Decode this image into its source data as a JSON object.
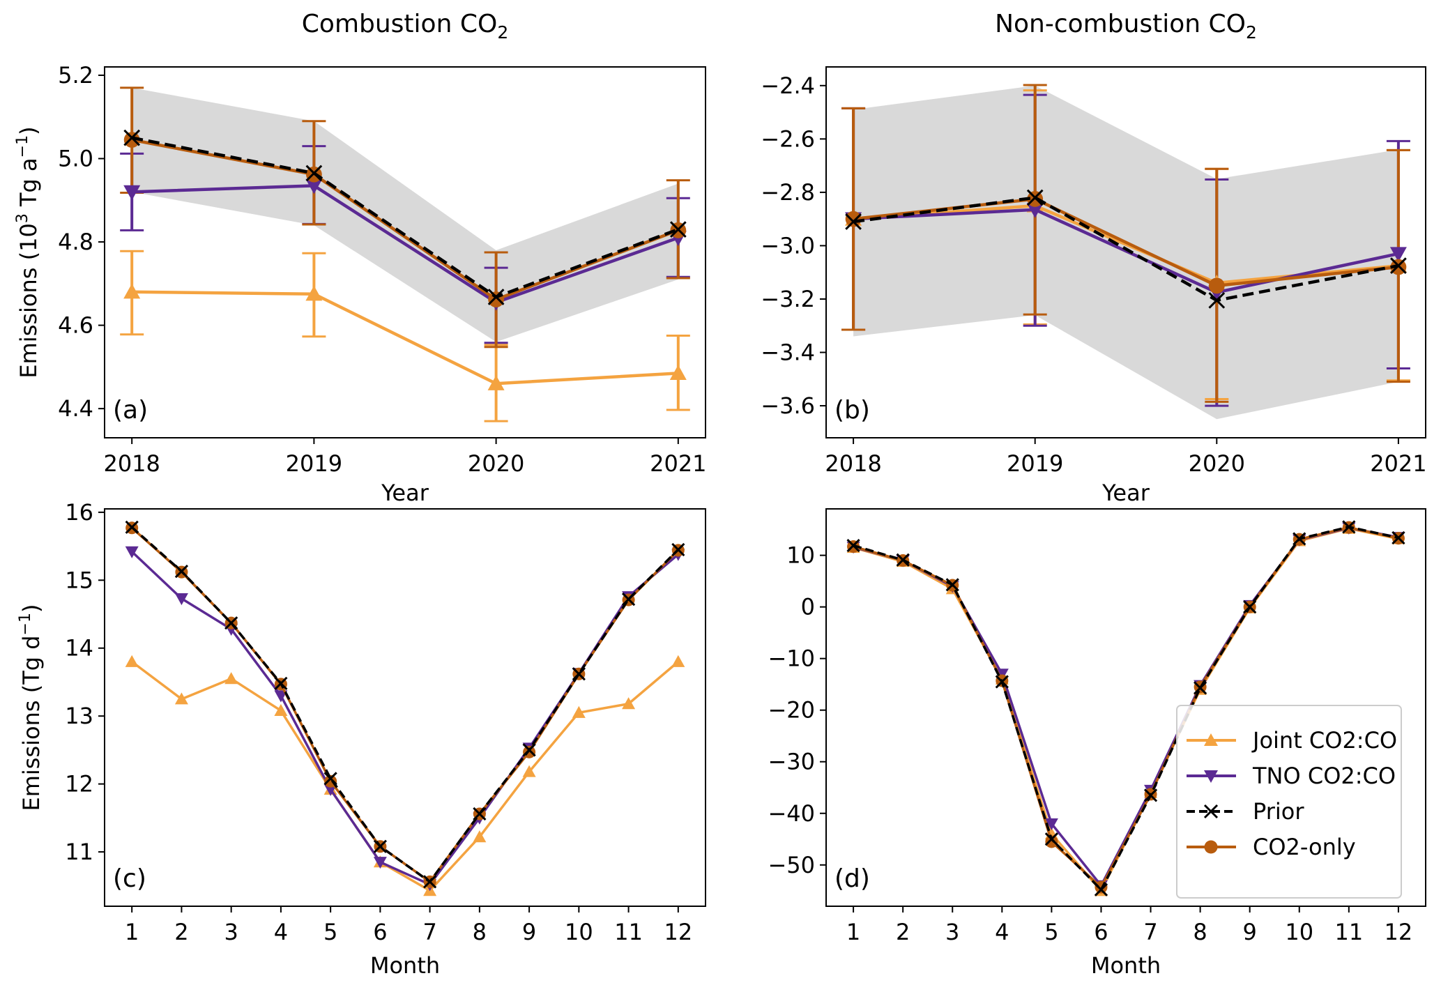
{
  "colors": {
    "joint": "#f4a340",
    "tno": "#5b2a93",
    "prior": "#000000",
    "co2only": "#b85c0e",
    "band": "#d9d9d9"
  },
  "legend": {
    "placement": "lower-right of panel (d)",
    "entries": [
      {
        "key": "joint",
        "label": "Joint CO2:CO",
        "marker": "triangle-up",
        "line": "solid"
      },
      {
        "key": "tno",
        "label": "TNO CO2:CO",
        "marker": "triangle-down",
        "line": "solid"
      },
      {
        "key": "prior",
        "label": "Prior",
        "marker": "x",
        "line": "dashed"
      },
      {
        "key": "co2only",
        "label": "CO2-only",
        "marker": "circle",
        "line": "solid"
      }
    ]
  },
  "chart_data": [
    {
      "id": "a",
      "panel_label": "(a)",
      "type": "line",
      "title": "Combustion CO",
      "title_subscript": "2",
      "xlabel": "Year",
      "ylabel_main": "Emissions (10",
      "ylabel_sup1": "3",
      "ylabel_mid": " Tg a",
      "ylabel_sup2": "−1",
      "ylabel_end": ")",
      "x": [
        2018,
        2019,
        2020,
        2021
      ],
      "xticks": [
        "2018",
        "2019",
        "2020",
        "2021"
      ],
      "xlim": [
        2017.85,
        2021.15
      ],
      "ylim": [
        4.33,
        5.22
      ],
      "yticks": [
        4.4,
        4.6,
        4.8,
        5.0,
        5.2
      ],
      "ytick_labels": [
        "4.4",
        "4.6",
        "4.8",
        "5.0",
        "5.2"
      ],
      "band": {
        "lower": [
          4.92,
          4.84,
          4.56,
          4.71
        ],
        "upper": [
          5.17,
          5.09,
          4.78,
          4.94
        ]
      },
      "series": [
        {
          "key": "joint",
          "name": "Joint CO2:CO",
          "values": [
            4.68,
            4.675,
            4.46,
            4.485
          ],
          "err_low": [
            4.578,
            4.573,
            4.37,
            4.397
          ],
          "err_high": [
            4.778,
            4.773,
            4.553,
            4.575
          ]
        },
        {
          "key": "tno",
          "name": "TNO CO2:CO",
          "values": [
            4.92,
            4.935,
            4.655,
            4.81
          ],
          "err_low": [
            4.828,
            4.843,
            4.558,
            4.716
          ],
          "err_high": [
            5.012,
            5.03,
            4.738,
            4.905
          ]
        },
        {
          "key": "prior",
          "name": "Prior",
          "values": [
            5.05,
            4.965,
            4.668,
            4.83
          ]
        },
        {
          "key": "co2only",
          "name": "CO2-only",
          "values": [
            5.045,
            4.962,
            4.662,
            4.828
          ],
          "err_low": [
            4.918,
            4.842,
            4.548,
            4.713
          ],
          "err_high": [
            5.17,
            5.09,
            4.775,
            4.948
          ]
        }
      ],
      "grid": false
    },
    {
      "id": "b",
      "panel_label": "(b)",
      "type": "line",
      "title": "Non-combustion CO",
      "title_subscript": "2",
      "xlabel": "Year",
      "x": [
        2018,
        2019,
        2020,
        2021
      ],
      "xticks": [
        "2018",
        "2019",
        "2020",
        "2021"
      ],
      "xlim": [
        2017.85,
        2021.15
      ],
      "ylim": [
        -3.72,
        -2.33
      ],
      "yticks": [
        -3.6,
        -3.4,
        -3.2,
        -3.0,
        -2.8,
        -2.6,
        -2.4
      ],
      "ytick_labels": [
        "−3.6",
        "−3.4",
        "−3.2",
        "−3.0",
        "−2.8",
        "−2.6",
        "−2.4"
      ],
      "band": {
        "lower": [
          -3.34,
          -3.26,
          -3.65,
          -3.51
        ],
        "upper": [
          -2.49,
          -2.4,
          -2.75,
          -2.64
        ]
      },
      "series": [
        {
          "key": "joint",
          "name": "Joint CO2:CO",
          "values": [
            -2.9,
            -2.85,
            -3.14,
            -3.075
          ],
          "err_low": [
            -3.315,
            -3.295,
            -3.575,
            -3.505
          ],
          "err_high": [
            -2.485,
            -2.418,
            -2.712,
            -2.642
          ]
        },
        {
          "key": "tno",
          "name": "TNO CO2:CO",
          "values": [
            -2.9,
            -2.865,
            -3.175,
            -3.03
          ],
          "err_low": [
            -3.315,
            -3.3,
            -3.6,
            -3.46
          ],
          "err_high": [
            -2.485,
            -2.435,
            -2.752,
            -2.608
          ]
        },
        {
          "key": "prior",
          "name": "Prior",
          "values": [
            -2.91,
            -2.82,
            -3.205,
            -3.075
          ]
        },
        {
          "key": "co2only",
          "name": "CO2-only",
          "values": [
            -2.9,
            -2.825,
            -3.15,
            -3.08
          ],
          "err_low": [
            -3.315,
            -3.258,
            -3.585,
            -3.51
          ],
          "err_high": [
            -2.485,
            -2.398,
            -2.712,
            -2.642
          ]
        }
      ],
      "grid": false
    },
    {
      "id": "c",
      "panel_label": "(c)",
      "type": "line",
      "xlabel": "Month",
      "ylabel_main": "Emissions (Tg d",
      "ylabel_sup": "−1",
      "ylabel_end": ")",
      "x": [
        1,
        2,
        3,
        4,
        5,
        6,
        7,
        8,
        9,
        10,
        11,
        12
      ],
      "xticks": [
        "1",
        "2",
        "3",
        "4",
        "5",
        "6",
        "7",
        "8",
        "9",
        "10",
        "11",
        "12"
      ],
      "xlim": [
        0.45,
        12.55
      ],
      "ylim": [
        10.2,
        16.05
      ],
      "yticks": [
        11,
        12,
        13,
        14,
        15,
        16
      ],
      "ytick_labels": [
        "11",
        "12",
        "13",
        "14",
        "15",
        "16"
      ],
      "series": [
        {
          "key": "joint",
          "name": "Joint CO2:CO",
          "values": [
            13.8,
            13.25,
            13.55,
            13.08,
            11.92,
            10.85,
            10.43,
            11.22,
            12.18,
            13.05,
            13.18,
            13.8
          ]
        },
        {
          "key": "tno",
          "name": "TNO CO2:CO",
          "values": [
            15.42,
            14.73,
            14.28,
            13.3,
            11.92,
            10.85,
            10.52,
            11.5,
            12.53,
            13.63,
            14.76,
            15.38
          ]
        },
        {
          "key": "prior",
          "name": "Prior",
          "values": [
            15.78,
            15.13,
            14.37,
            13.48,
            12.08,
            11.08,
            10.56,
            11.56,
            12.5,
            13.62,
            14.72,
            15.45
          ]
        },
        {
          "key": "co2only",
          "name": "CO2-only",
          "values": [
            15.77,
            15.12,
            14.37,
            13.47,
            12.04,
            11.08,
            10.56,
            11.56,
            12.47,
            13.62,
            14.71,
            15.44
          ]
        }
      ],
      "grid": false
    },
    {
      "id": "d",
      "panel_label": "(d)",
      "type": "line",
      "xlabel": "Month",
      "x": [
        1,
        2,
        3,
        4,
        5,
        6,
        7,
        8,
        9,
        10,
        11,
        12
      ],
      "xticks": [
        "1",
        "2",
        "3",
        "4",
        "5",
        "6",
        "7",
        "8",
        "9",
        "10",
        "11",
        "12"
      ],
      "xlim": [
        0.45,
        12.55
      ],
      "ylim": [
        -58,
        19
      ],
      "yticks": [
        -50,
        -40,
        -30,
        -20,
        -10,
        0,
        10
      ],
      "ytick_labels": [
        "−50",
        "−40",
        "−30",
        "−20",
        "−10",
        "0",
        "10"
      ],
      "series": [
        {
          "key": "joint",
          "name": "Joint CO2:CO",
          "values": [
            11.5,
            8.8,
            3.5,
            -14.0,
            -44.0,
            -55.0,
            -36.0,
            -16.0,
            -0.2,
            12.8,
            15.2,
            13.2
          ]
        },
        {
          "key": "tno",
          "name": "TNO CO2:CO",
          "values": [
            11.6,
            9.0,
            4.0,
            -13.0,
            -42.0,
            -54.0,
            -35.5,
            -15.2,
            0.3,
            13.0,
            15.3,
            13.5
          ]
        },
        {
          "key": "prior",
          "name": "Prior",
          "values": [
            11.9,
            9.1,
            4.3,
            -14.5,
            -45.0,
            -54.8,
            -36.5,
            -15.7,
            0.0,
            13.2,
            15.5,
            13.4
          ]
        },
        {
          "key": "co2only",
          "name": "CO2-only",
          "values": [
            11.7,
            9.0,
            4.2,
            -14.3,
            -45.5,
            -54.3,
            -36.3,
            -15.5,
            0.0,
            13.1,
            15.4,
            13.3
          ]
        }
      ],
      "grid": false
    }
  ]
}
